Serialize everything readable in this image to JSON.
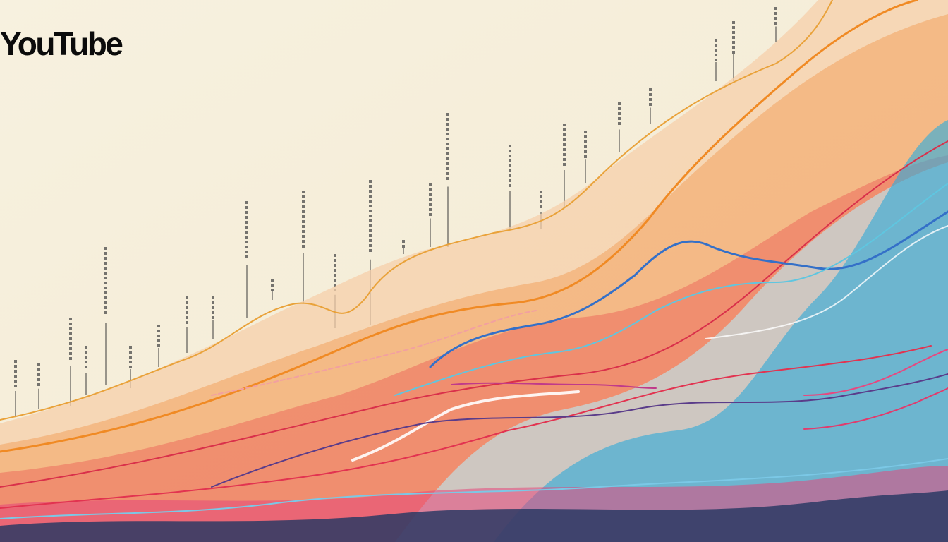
{
  "header": {
    "title": "YouTube"
  }
}
